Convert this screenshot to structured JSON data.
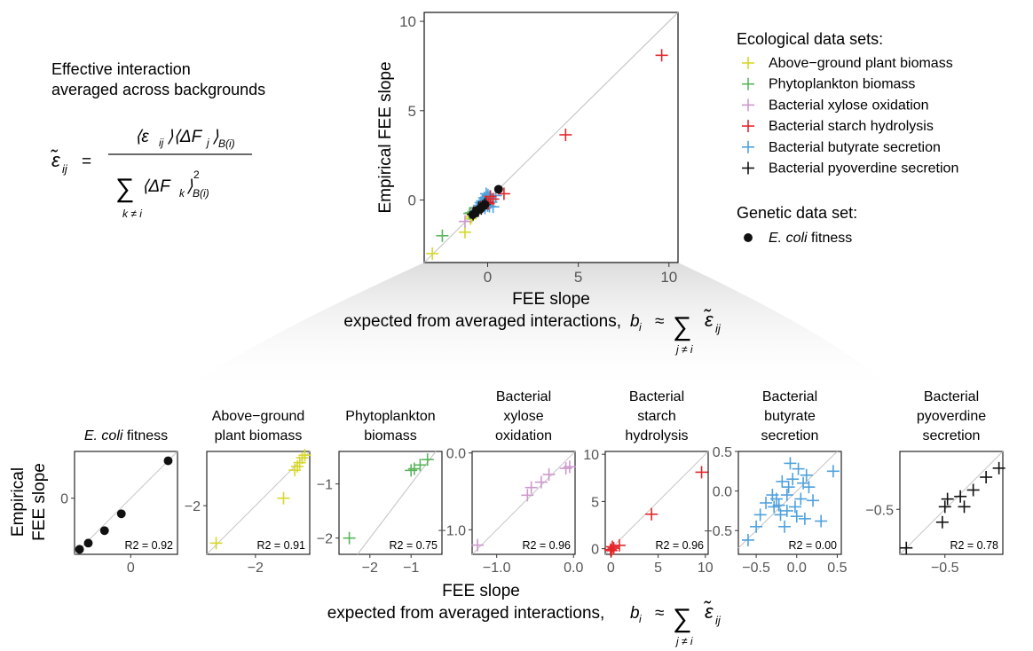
{
  "formula_panel": {
    "line1": "Effective interaction",
    "line2": "averaged across backgrounds"
  },
  "main_chart": {
    "ylabel": "Empirical FEE slope",
    "xlabel_line1": "FEE slope",
    "xlabel_line2": "expected from averaged interactions,",
    "xlim": [
      -3.5,
      10.5
    ],
    "ylim": [
      -3.5,
      10.5
    ],
    "xticks": [
      0,
      5,
      10
    ],
    "yticks": [
      0,
      5,
      10
    ],
    "tick_labels": [
      "0",
      "5",
      "10"
    ]
  },
  "legend": {
    "ecological_title": "Ecological data sets:",
    "ecological": [
      {
        "label": "Above−ground plant biomass",
        "color": "#d6d829"
      },
      {
        "label": "Phytoplankton biomass",
        "color": "#5bb55d"
      },
      {
        "label": "Bacterial xylose oxidation",
        "color": "#cc99cc"
      },
      {
        "label": "Bacterial starch hydrolysis",
        "color": "#e3262a"
      },
      {
        "label": "Bacterial butyrate secretion",
        "color": "#4ea1dd"
      },
      {
        "label": "Bacterial pyoverdine secretion",
        "color": "#111111"
      }
    ],
    "genetic_title": "Genetic data set:",
    "genetic": [
      {
        "label_italic": "E. coli",
        "label_rest": " fitness",
        "color": "#111111"
      }
    ]
  },
  "bottom_axis": {
    "ylabel_line1": "Empirical",
    "ylabel_line2": "FEE slope",
    "xlabel_line1": "FEE slope",
    "xlabel_line2": "expected from averaged interactions,"
  },
  "chart_data": [
    {
      "id": "ecoli",
      "type": "scatter",
      "marker": "dot",
      "color": "#111111",
      "title_italic": "E. coli",
      "title_rest": " fitness",
      "title_lines": [],
      "xlim": [
        -0.9,
        0.75
      ],
      "ylim": [
        -0.9,
        0.75
      ],
      "xticks": [
        0
      ],
      "xtick_labels": [
        "0"
      ],
      "yticks": [
        0
      ],
      "ytick_labels": [
        "0"
      ],
      "r2": "R2 = 0.92",
      "points": [
        [
          0.6,
          0.6
        ],
        [
          -0.15,
          -0.25
        ],
        [
          -0.42,
          -0.52
        ],
        [
          -0.68,
          -0.72
        ],
        [
          -0.82,
          -0.82
        ]
      ]
    },
    {
      "id": "plant",
      "type": "scatter",
      "marker": "plus",
      "color": "#d6d829",
      "title_lines": [
        "Above−ground",
        "plant biomass"
      ],
      "xlim": [
        -3.3,
        -0.55
      ],
      "ylim": [
        -3.3,
        -0.55
      ],
      "xticks": [
        -2
      ],
      "xtick_labels": [
        "−2"
      ],
      "yticks": [
        -2
      ],
      "ytick_labels": [
        "−2"
      ],
      "r2": "R2 = 0.91",
      "points": [
        [
          -3.05,
          -3.0
        ],
        [
          -1.25,
          -1.8
        ],
        [
          -0.95,
          -1.05
        ],
        [
          -0.82,
          -0.85
        ],
        [
          -0.75,
          -0.72
        ],
        [
          -0.68,
          -0.65
        ],
        [
          -0.88,
          -0.95
        ]
      ]
    },
    {
      "id": "phyto",
      "type": "scatter",
      "marker": "plus",
      "color": "#5bb55d",
      "title_lines": [
        "Phytoplankton",
        "biomass"
      ],
      "xlim": [
        -2.75,
        -0.25
      ],
      "ylim": [
        -2.3,
        -0.4
      ],
      "xticks": [
        -2,
        -1
      ],
      "xtick_labels": [
        "−2",
        "−1"
      ],
      "yticks": [
        -2,
        -1
      ],
      "ytick_labels": [
        "−2",
        "−1"
      ],
      "r2": "R2 = 0.75",
      "points": [
        [
          -2.5,
          -2.0
        ],
        [
          -1.0,
          -0.75
        ],
        [
          -0.92,
          -0.72
        ],
        [
          -0.78,
          -0.65
        ],
        [
          -0.6,
          -0.55
        ]
      ]
    },
    {
      "id": "xylose",
      "type": "scatter",
      "marker": "plus",
      "color": "#cc99cc",
      "title_lines": [
        "Bacterial",
        "xylose",
        "oxidation"
      ],
      "xlim": [
        -1.32,
        0.02
      ],
      "ylim": [
        -1.32,
        0.02
      ],
      "xticks": [
        -1,
        0
      ],
      "xtick_labels": [
        "−1.0",
        "0.0"
      ],
      "yticks": [
        -1,
        0
      ],
      "ytick_labels": [
        "−1.0",
        "0.0"
      ],
      "r2": "R2 = 0.96",
      "points": [
        [
          -1.25,
          -1.2
        ],
        [
          -0.6,
          -0.55
        ],
        [
          -0.55,
          -0.45
        ],
        [
          -0.42,
          -0.38
        ],
        [
          -0.32,
          -0.28
        ],
        [
          -0.1,
          -0.2
        ],
        [
          -0.05,
          -0.18
        ]
      ]
    },
    {
      "id": "starch",
      "type": "scatter",
      "marker": "plus",
      "color": "#e3262a",
      "title_lines": [
        "Bacterial",
        "starch",
        "hydrolysis"
      ],
      "xlim": [
        -0.6,
        10.3
      ],
      "ylim": [
        -0.6,
        10.3
      ],
      "xticks": [
        0,
        5,
        10
      ],
      "xtick_labels": [
        "0",
        "5",
        "10"
      ],
      "yticks": [
        0,
        5,
        10
      ],
      "ytick_labels": [
        "0",
        "5",
        "10"
      ],
      "r2": "R2 = 0.96",
      "points": [
        [
          9.6,
          8.1
        ],
        [
          4.3,
          3.65
        ],
        [
          0.9,
          0.35
        ],
        [
          0.15,
          0.2
        ],
        [
          -0.05,
          -0.1
        ],
        [
          0.3,
          0.05
        ],
        [
          0.05,
          -0.2
        ]
      ]
    },
    {
      "id": "butyrate",
      "type": "scatter",
      "marker": "plus",
      "color": "#4ea1dd",
      "title_lines": [
        "Bacterial",
        "butyrate",
        "secretion"
      ],
      "xlim": [
        -0.72,
        0.55
      ],
      "ylim": [
        -0.8,
        0.5
      ],
      "xticks": [
        -0.5,
        0,
        0.5
      ],
      "xtick_labels": [
        "−0.5",
        "0.0",
        "0.5"
      ],
      "yticks": [
        -0.5,
        0,
        0.5
      ],
      "ytick_labels": [
        "−0.5",
        "0.0",
        "0.5"
      ],
      "r2": "R2 = 0.00",
      "points": [
        [
          -0.6,
          -0.62
        ],
        [
          -0.5,
          -0.45
        ],
        [
          -0.45,
          -0.3
        ],
        [
          -0.38,
          -0.15
        ],
        [
          -0.3,
          -0.05
        ],
        [
          -0.25,
          -0.1
        ],
        [
          -0.22,
          -0.18
        ],
        [
          -0.2,
          -0.3
        ],
        [
          -0.15,
          -0.45
        ],
        [
          -0.12,
          -0.05
        ],
        [
          -0.1,
          0.05
        ],
        [
          -0.05,
          0.15
        ],
        [
          -0.02,
          -0.2
        ],
        [
          0.02,
          0.28
        ],
        [
          0.05,
          -0.1
        ],
        [
          0.08,
          0.1
        ],
        [
          0.1,
          -0.35
        ],
        [
          0.12,
          0.2
        ],
        [
          0.15,
          0.05
        ],
        [
          -0.08,
          0.35
        ],
        [
          -0.18,
          0.12
        ],
        [
          0.0,
          -0.32
        ],
        [
          0.3,
          -0.38
        ],
        [
          0.45,
          0.25
        ],
        [
          -0.28,
          -0.2
        ],
        [
          -0.12,
          -0.25
        ],
        [
          0.2,
          -0.12
        ]
      ]
    },
    {
      "id": "pyoverdine",
      "type": "scatter",
      "marker": "plus",
      "color": "#111111",
      "title_lines": [
        "Bacterial",
        "pyoverdine",
        "secretion"
      ],
      "xlim": [
        -0.85,
        -0.05
      ],
      "ylim": [
        -0.85,
        -0.05
      ],
      "xticks": [
        -0.5
      ],
      "xtick_labels": [
        "−0.5"
      ],
      "yticks": [
        -0.5
      ],
      "ytick_labels": [
        "−0.5"
      ],
      "r2": "R2 = 0.78",
      "points": [
        [
          -0.8,
          -0.8
        ],
        [
          -0.52,
          -0.6
        ],
        [
          -0.5,
          -0.48
        ],
        [
          -0.48,
          -0.42
        ],
        [
          -0.38,
          -0.4
        ],
        [
          -0.35,
          -0.48
        ],
        [
          -0.28,
          -0.35
        ],
        [
          -0.18,
          -0.25
        ],
        [
          -0.08,
          -0.18
        ]
      ]
    }
  ]
}
